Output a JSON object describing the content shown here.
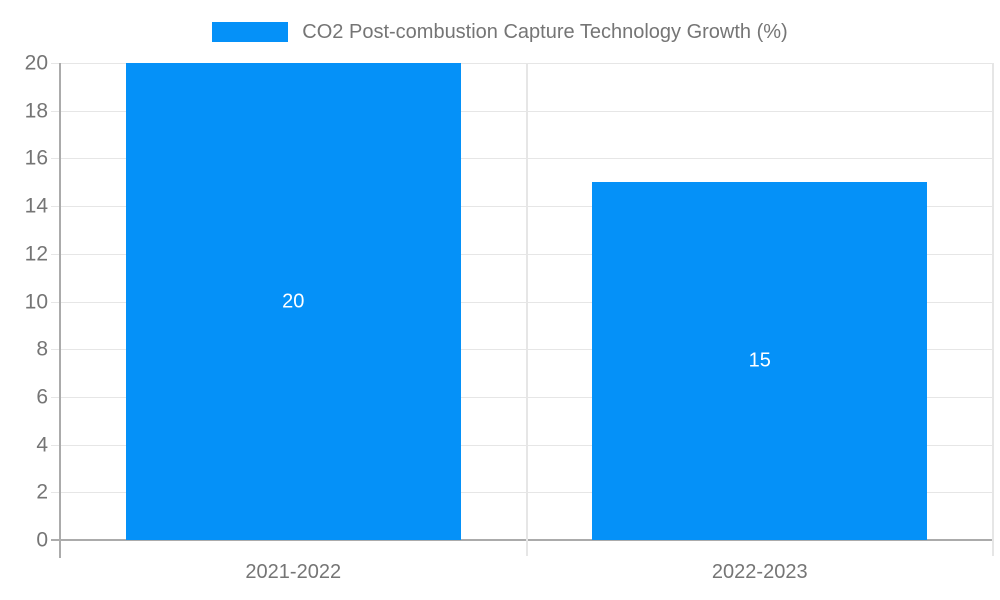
{
  "chart_data": {
    "type": "bar",
    "title": "CO2 Post-combustion Capture Technology Growth (%)",
    "categories": [
      "2021-2022",
      "2022-2023"
    ],
    "values": [
      20,
      15
    ],
    "value_labels": [
      "20",
      "15"
    ],
    "series": [
      {
        "name": "CO2 Post-combustion Capture Technology Growth (%)",
        "values": [
          20,
          15
        ]
      }
    ],
    "xlabel": "",
    "ylabel": "",
    "ylim": [
      0,
      20
    ],
    "ytick_labels": [
      "0",
      "2",
      "4",
      "6",
      "8",
      "10",
      "12",
      "14",
      "16",
      "18",
      "20"
    ],
    "grid": true,
    "legend_position": "top-center",
    "colors": {
      "bar": "#0591F8",
      "grid": "#E6E6E6",
      "axis": "#ABABAB",
      "text": "#757575",
      "value_label": "#FFFFFF",
      "background": "#FFFFFF"
    }
  }
}
